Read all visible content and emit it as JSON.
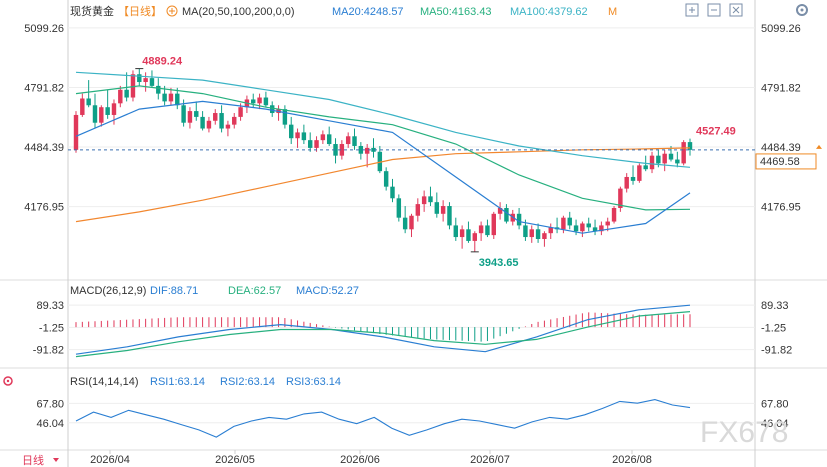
{
  "colors": {
    "up": "#e0385a",
    "down": "#0e9f87",
    "ma20": "#2a7ed2",
    "ma50": "#27b07f",
    "ma100": "#3bb3c5",
    "ma200": "#f2872f",
    "dif": "#2a7ed2",
    "dea": "#27b07f",
    "rsi": "#2a7ed2",
    "macd_pos": "#e0385a",
    "macd_neg": "#0e9f87",
    "header_orange": "#f08a24",
    "price_tag": "#f08a24",
    "grey_text": "#555555"
  },
  "header": {
    "instrument": "现货黄金",
    "period": "【日线】",
    "ma_label": "MA(20,50,100,200,0,0)",
    "ma20": "MA20:4248.57",
    "ma50": "MA50:4163.43",
    "ma100": "MA100:4379.62",
    "more": "M",
    "icons": [
      "plus-square-icon",
      "minus-square-icon",
      "close-square-icon",
      "gear-icon"
    ]
  },
  "price_axis": {
    "ticks": [
      "5099.26",
      "4791.82",
      "4484.39",
      "4176.95"
    ],
    "current": "4469.58"
  },
  "macd": {
    "title": "MACD(26,12,9)",
    "dif": "DIF:88.71",
    "dea": "DEA:62.57",
    "macd": "MACD:52.27",
    "ticks": [
      "89.33",
      "-1.25",
      "-91.82"
    ]
  },
  "rsi": {
    "title": "RSI(14,14,14)",
    "rsi1": "RSI1:63.14",
    "rsi2": "RSI2:63.14",
    "rsi3": "RSI3:63.14",
    "ticks": [
      "67.80",
      "46.04"
    ]
  },
  "footer": {
    "period": "日线",
    "dates": [
      "2026/04",
      "2026/05",
      "2026/06",
      "2026/07",
      "2026/08"
    ]
  },
  "watermark": "FX678",
  "chart_data": {
    "type": "candlestick",
    "title": "现货黄金 日线",
    "ylim": [
      3850,
      5140
    ],
    "annotations": {
      "high": "4889.24",
      "low": "3943.65",
      "last": "4527.49"
    },
    "candles": [
      [
        4470,
        4670,
        4455,
        4650
      ],
      [
        4650,
        4760,
        4640,
        4735
      ],
      [
        4735,
        4830,
        4690,
        4700
      ],
      [
        4700,
        4760,
        4580,
        4610
      ],
      [
        4610,
        4700,
        4590,
        4690
      ],
      [
        4690,
        4780,
        4630,
        4650
      ],
      [
        4650,
        4730,
        4600,
        4710
      ],
      [
        4710,
        4800,
        4690,
        4780
      ],
      [
        4780,
        4870,
        4720,
        4740
      ],
      [
        4740,
        4880,
        4720,
        4860
      ],
      [
        4860,
        4889,
        4800,
        4820
      ],
      [
        4820,
        4870,
        4770,
        4840
      ],
      [
        4840,
        4880,
        4790,
        4800
      ],
      [
        4800,
        4840,
        4730,
        4760
      ],
      [
        4760,
        4800,
        4700,
        4720
      ],
      [
        4720,
        4790,
        4700,
        4760
      ],
      [
        4760,
        4790,
        4680,
        4700
      ],
      [
        4700,
        4730,
        4590,
        4610
      ],
      [
        4610,
        4690,
        4580,
        4670
      ],
      [
        4670,
        4720,
        4620,
        4640
      ],
      [
        4640,
        4670,
        4570,
        4580
      ],
      [
        4580,
        4640,
        4560,
        4620
      ],
      [
        4620,
        4680,
        4600,
        4660
      ],
      [
        4660,
        4700,
        4560,
        4580
      ],
      [
        4580,
        4620,
        4540,
        4600
      ],
      [
        4600,
        4660,
        4580,
        4640
      ],
      [
        4640,
        4710,
        4620,
        4690
      ],
      [
        4690,
        4750,
        4660,
        4730
      ],
      [
        4730,
        4760,
        4690,
        4710
      ],
      [
        4710,
        4760,
        4680,
        4740
      ],
      [
        4740,
        4770,
        4690,
        4700
      ],
      [
        4700,
        4720,
        4640,
        4660
      ],
      [
        4660,
        4700,
        4620,
        4680
      ],
      [
        4680,
        4700,
        4580,
        4600
      ],
      [
        4600,
        4640,
        4500,
        4530
      ],
      [
        4530,
        4580,
        4480,
        4560
      ],
      [
        4560,
        4600,
        4500,
        4520
      ],
      [
        4520,
        4560,
        4460,
        4480
      ],
      [
        4480,
        4540,
        4460,
        4520
      ],
      [
        4520,
        4570,
        4500,
        4550
      ],
      [
        4550,
        4590,
        4490,
        4500
      ],
      [
        4500,
        4530,
        4400,
        4440
      ],
      [
        4440,
        4520,
        4420,
        4500
      ],
      [
        4500,
        4560,
        4480,
        4540
      ],
      [
        4540,
        4580,
        4470,
        4490
      ],
      [
        4490,
        4510,
        4420,
        4450
      ],
      [
        4450,
        4500,
        4380,
        4480
      ],
      [
        4480,
        4530,
        4430,
        4460
      ],
      [
        4460,
        4490,
        4350,
        4360
      ],
      [
        4360,
        4380,
        4260,
        4280
      ],
      [
        4280,
        4320,
        4200,
        4220
      ],
      [
        4220,
        4240,
        4100,
        4120
      ],
      [
        4120,
        4180,
        4040,
        4060
      ],
      [
        4060,
        4140,
        4020,
        4130
      ],
      [
        4130,
        4220,
        4100,
        4190
      ],
      [
        4190,
        4260,
        4150,
        4230
      ],
      [
        4230,
        4280,
        4180,
        4200
      ],
      [
        4200,
        4250,
        4120,
        4140
      ],
      [
        4140,
        4210,
        4100,
        4180
      ],
      [
        4180,
        4200,
        4060,
        4080
      ],
      [
        4080,
        4120,
        4000,
        4020
      ],
      [
        4020,
        4080,
        3960,
        4060
      ],
      [
        4060,
        4100,
        3990,
        4000
      ],
      [
        4000,
        4050,
        3944,
        4040
      ],
      [
        4040,
        4100,
        4000,
        4080
      ],
      [
        4080,
        4110,
        4020,
        4030
      ],
      [
        4030,
        4150,
        4010,
        4140
      ],
      [
        4140,
        4200,
        4110,
        4170
      ],
      [
        4170,
        4190,
        4090,
        4100
      ],
      [
        4100,
        4160,
        4080,
        4140
      ],
      [
        4140,
        4170,
        4060,
        4080
      ],
      [
        4080,
        4110,
        4000,
        4020
      ],
      [
        4020,
        4080,
        3990,
        4060
      ],
      [
        4060,
        4090,
        3990,
        4010
      ],
      [
        4010,
        4050,
        3970,
        4040
      ],
      [
        4040,
        4090,
        4010,
        4070
      ],
      [
        4070,
        4120,
        4040,
        4060
      ],
      [
        4060,
        4130,
        4040,
        4120
      ],
      [
        4120,
        4150,
        4060,
        4080
      ],
      [
        4080,
        4110,
        4030,
        4050
      ],
      [
        4050,
        4100,
        4020,
        4090
      ],
      [
        4090,
        4120,
        4050,
        4070
      ],
      [
        4070,
        4110,
        4030,
        4050
      ],
      [
        4050,
        4100,
        4030,
        4080
      ],
      [
        4080,
        4120,
        4050,
        4100
      ],
      [
        4100,
        4180,
        4090,
        4170
      ],
      [
        4170,
        4280,
        4150,
        4270
      ],
      [
        4270,
        4350,
        4250,
        4330
      ],
      [
        4330,
        4390,
        4290,
        4310
      ],
      [
        4310,
        4400,
        4300,
        4390
      ],
      [
        4390,
        4440,
        4360,
        4370
      ],
      [
        4370,
        4460,
        4350,
        4440
      ],
      [
        4440,
        4470,
        4380,
        4400
      ],
      [
        4400,
        4470,
        4360,
        4450
      ],
      [
        4450,
        4490,
        4410,
        4420
      ],
      [
        4420,
        4460,
        4380,
        4400
      ],
      [
        4400,
        4520,
        4390,
        4510
      ],
      [
        4510,
        4528,
        4440,
        4470
      ]
    ],
    "ma_x": [
      0,
      10,
      20,
      30,
      40,
      50,
      60,
      70,
      80,
      90,
      97
    ],
    "ma20": [
      4540,
      4680,
      4720,
      4680,
      4620,
      4560,
      4330,
      4100,
      4040,
      4090,
      4248
    ],
    "ma50": [
      4760,
      4800,
      4760,
      4690,
      4640,
      4600,
      4500,
      4340,
      4220,
      4160,
      4163
    ],
    "ma100": [
      4870,
      4850,
      4830,
      4780,
      4730,
      4650,
      4560,
      4490,
      4440,
      4400,
      4380
    ],
    "ma200": [
      4100,
      4150,
      4210,
      4280,
      4350,
      4420,
      4450,
      4460,
      4470,
      4475,
      4480
    ],
    "macd_ylim": [
      -150,
      110
    ],
    "dif": [
      -110,
      -80,
      -40,
      -10,
      10,
      -10,
      -40,
      -80,
      -100,
      -40,
      30,
      70,
      89
    ],
    "dea": [
      -120,
      -95,
      -60,
      -30,
      -10,
      -10,
      -25,
      -55,
      -70,
      -50,
      0,
      45,
      63
    ],
    "rsi_ylim": [
      20,
      85
    ],
    "rsi": [
      48,
      58,
      52,
      60,
      55,
      50,
      44,
      38,
      30,
      42,
      48,
      52,
      50,
      56,
      58,
      50,
      45,
      52,
      40,
      32,
      38,
      45,
      50,
      48,
      44,
      40,
      47,
      52,
      50,
      55,
      62,
      70,
      68,
      72,
      66,
      63
    ]
  }
}
